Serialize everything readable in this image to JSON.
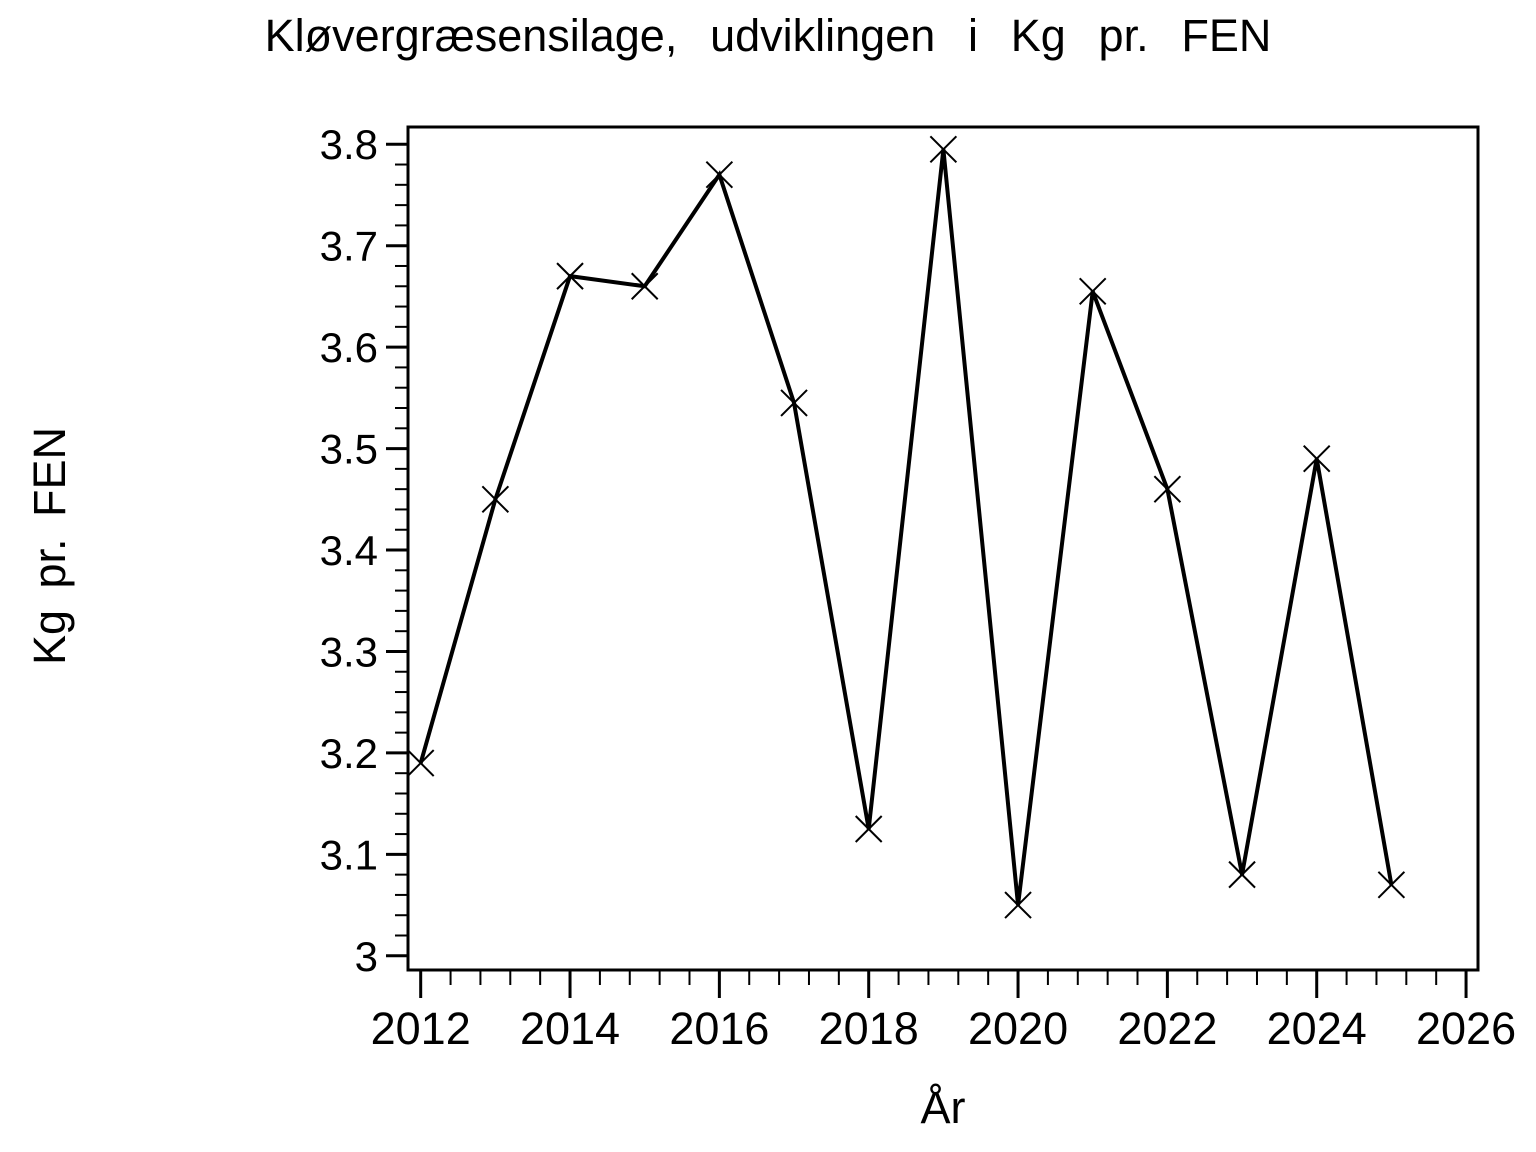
{
  "chart_data": {
    "type": "line",
    "title": "Kløvergræsensilage, udviklingen i Kg pr. FEN",
    "xlabel": "År",
    "ylabel": "Kg pr. FEN",
    "x": [
      2012,
      2013,
      2014,
      2015,
      2016,
      2017,
      2018,
      2019,
      2020,
      2021,
      2022,
      2023,
      2024,
      2025
    ],
    "values": [
      3.19,
      3.45,
      3.67,
      3.66,
      3.77,
      3.545,
      3.125,
      3.795,
      3.05,
      3.655,
      3.46,
      3.08,
      3.49,
      3.07
    ],
    "marker": "x",
    "line_color": "#000000",
    "background_color": "#ffffff",
    "xlim": [
      2011.83,
      2026.16
    ],
    "ylim": [
      2.986,
      3.817
    ],
    "x_tick_values": [
      2012,
      2014,
      2016,
      2018,
      2020,
      2022,
      2024,
      2026
    ],
    "x_tick_labels": [
      "2012",
      "2014",
      "2016",
      "2018",
      "2020",
      "2022",
      "2024",
      "2026"
    ],
    "x_minor_step": 0.4,
    "y_tick_values": [
      3,
      3.1,
      3.2,
      3.3,
      3.4,
      3.5,
      3.6,
      3.7,
      3.8
    ],
    "y_tick_labels": [
      "3",
      "3.1",
      "3.2",
      "3.3",
      "3.4",
      "3.5",
      "3.6",
      "3.7",
      "3.8"
    ],
    "y_minor_step": 0.02,
    "grid": false,
    "legend": "none"
  }
}
